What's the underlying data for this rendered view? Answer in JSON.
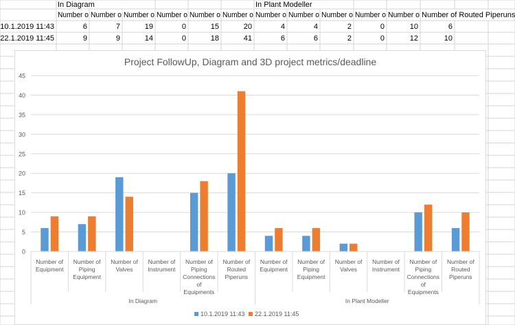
{
  "sheet": {
    "headers_row1": [
      {
        "col": 1,
        "text": "In Diagram"
      },
      {
        "col": 7,
        "text": "In Plant Modeller"
      }
    ],
    "headers_row2": [
      "Number o",
      "Number o",
      "Number o",
      "Number o",
      "Number o",
      "Number o",
      "Number o",
      "Number o",
      "Number o",
      "Number o",
      "Number o",
      "Number of Routed Piperuns"
    ],
    "rows": [
      {
        "label": "10.1.2019 11:43",
        "values": [
          "6",
          "7",
          "19",
          "0",
          "15",
          "20",
          "4",
          "4",
          "2",
          "0",
          "10",
          "6"
        ]
      },
      {
        "label": "22.1.2019 11:45",
        "values": [
          "9",
          "9",
          "14",
          "0",
          "18",
          "41",
          "6",
          "6",
          "2",
          "0",
          "12",
          "10"
        ]
      }
    ]
  },
  "chart_data": {
    "type": "bar",
    "title": "Project FollowUp, Diagram and 3D project metrics/deadline",
    "ylim": [
      0,
      45
    ],
    "yticks": [
      0,
      5,
      10,
      15,
      20,
      25,
      30,
      35,
      40,
      45
    ],
    "groups": [
      {
        "name": "In Diagram",
        "categories": [
          [
            "Number of",
            "Equipment"
          ],
          [
            "Number of",
            "Piping",
            "Equipment"
          ],
          [
            "Number of",
            "Valves"
          ],
          [
            "Number of",
            "Instrument"
          ],
          [
            "Number of",
            "Piping",
            "Connections",
            "of",
            "Equipments"
          ],
          [
            "Number of",
            "Routed",
            "Piperuns"
          ]
        ]
      },
      {
        "name": "In Plant Modeller",
        "categories": [
          [
            "Number of",
            "Equipment"
          ],
          [
            "Number of",
            "Piping",
            "Equipment"
          ],
          [
            "Number of",
            "Valves"
          ],
          [
            "Number of",
            "Instrument"
          ],
          [
            "Number of",
            "Piping",
            "Connections",
            "of",
            "Equipments"
          ],
          [
            "Number of",
            "Routed",
            "Piperuns"
          ]
        ]
      }
    ],
    "series": [
      {
        "name": "10.1.2019 11:43",
        "color": "#5B9BD5",
        "values": [
          6,
          7,
          19,
          0,
          15,
          20,
          4,
          4,
          2,
          0,
          10,
          6
        ]
      },
      {
        "name": "22.1.2019 11:45",
        "color": "#ED7D31",
        "values": [
          9,
          9,
          14,
          0,
          18,
          41,
          6,
          6,
          2,
          0,
          12,
          10
        ]
      }
    ],
    "grid": true,
    "legend": "bottom"
  }
}
